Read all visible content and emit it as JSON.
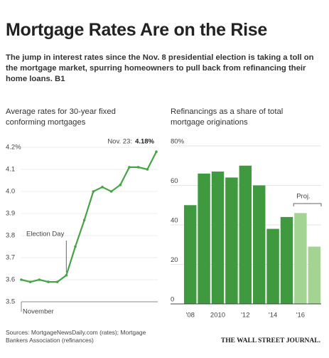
{
  "title": "Mortgage Rates Are on the Rise",
  "subtitle": "The jump in interest rates since the Nov. 8 presidential election is taking a toll on the mortgage market, spurring homeowners to pull back from refinancing their home loans. B1",
  "chart_data": [
    {
      "type": "line",
      "title": "Average rates for 30-year fixed conforming mortgages",
      "values": [
        3.6,
        3.59,
        3.6,
        3.59,
        3.59,
        3.62,
        3.75,
        3.87,
        4.0,
        4.02,
        4.0,
        4.03,
        4.11,
        4.11,
        4.1,
        4.18
      ],
      "value_labels": [
        null,
        null,
        null,
        null,
        null,
        null,
        null,
        null,
        null,
        null,
        null,
        null,
        null,
        null,
        null,
        "4.18%"
      ],
      "annotation": "Nov. 23:",
      "event": "Election Day",
      "x_label": "November",
      "color": "#46a346",
      "ylim": [
        3.5,
        4.2
      ],
      "yticks": [
        3.5,
        3.6,
        3.7,
        3.8,
        3.9,
        {
          "value": 4,
          "label": "4.0"
        },
        4.1,
        {
          "value": 4.2,
          "label": "4.2%"
        }
      ],
      "grid": true
    },
    {
      "type": "bar",
      "title": "Refinancings as a share of total mortgage originations",
      "categories": [
        "'08",
        null,
        "2010",
        null,
        "'12",
        null,
        "'14",
        null,
        "'16",
        null
      ],
      "values": [
        50,
        66,
        67,
        64,
        70,
        60,
        38,
        44,
        46,
        29
      ],
      "colors": [
        "#3f9a3f",
        "#3f9a3f",
        "#3f9a3f",
        "#3f9a3f",
        "#3f9a3f",
        "#3f9a3f",
        "#3f9a3f",
        "#3f9a3f",
        "#a3d494",
        "#a3d494"
      ],
      "annotation": "Proj.",
      "ylim": [
        0,
        80
      ],
      "yticks": [
        0,
        20,
        40,
        60,
        {
          "value": 80,
          "label": "80%"
        }
      ],
      "grid": true
    }
  ],
  "source": "Sources: MortgageNewsDaily.com (rates); Mortgage Bankers Association (refinances)",
  "publisher": "THE WALL STREET JOURNAL."
}
